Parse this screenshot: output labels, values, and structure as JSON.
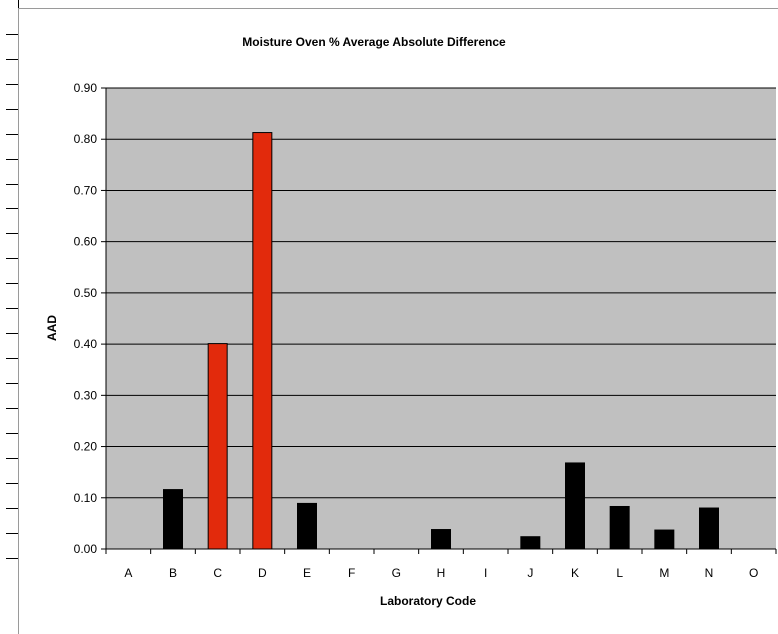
{
  "chart_data": {
    "type": "bar",
    "title": "Moisture Oven % Average Absolute Difference",
    "xlabel": "Laboratory Code",
    "ylabel": "AAD",
    "categories": [
      "A",
      "B",
      "C",
      "D",
      "E",
      "F",
      "G",
      "H",
      "I",
      "J",
      "K",
      "L",
      "M",
      "N",
      "O"
    ],
    "values": [
      0,
      0.116,
      0.401,
      0.813,
      0.089,
      0,
      0,
      0.038,
      0,
      0.024,
      0.168,
      0.083,
      0.037,
      0.08,
      0
    ],
    "highlighted": [
      "C",
      "D"
    ],
    "ylim": [
      0,
      0.9
    ],
    "yticks": [
      "0.00",
      "0.10",
      "0.20",
      "0.30",
      "0.40",
      "0.50",
      "0.60",
      "0.70",
      "0.80",
      "0.90"
    ],
    "grid": true,
    "legend": "none",
    "colors": {
      "plot_background": "#c0c0c0",
      "bar_default": "#000000",
      "bar_highlight": "#e22a0c",
      "gridline": "#000000"
    }
  }
}
